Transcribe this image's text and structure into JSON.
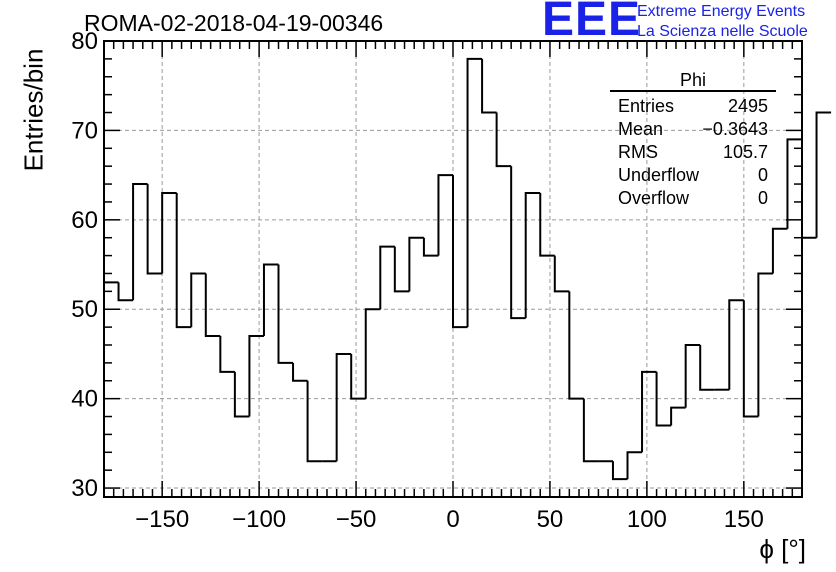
{
  "header": {
    "title": "ROMA-02-2018-04-19-00346",
    "logo_text": "EEE",
    "logo_line1": "Extreme Energy Events",
    "logo_line2": "La Scienza nelle Scuole"
  },
  "stats_box": {
    "title": "Phi",
    "rows": [
      {
        "label": "Entries",
        "value": "2495"
      },
      {
        "label": "Mean",
        "value": "−0.3643"
      },
      {
        "label": "RMS",
        "value": "105.7"
      },
      {
        "label": "Underflow",
        "value": "0"
      },
      {
        "label": "Overflow",
        "value": "0"
      }
    ]
  },
  "colors": {
    "logo": "#1a22e8",
    "line": "#000000",
    "grid": "#9a9a9a"
  },
  "chart_data": {
    "type": "histogram",
    "title": "ROMA-02-2018-04-19-00346",
    "xlabel": "ϕ [°]",
    "ylabel": "Entries/bin",
    "xlim": [
      -180,
      180
    ],
    "ylim": [
      29,
      80
    ],
    "grid": true,
    "bin_width": 7.5,
    "bin_edges_start": -180,
    "values": [
      53,
      51,
      64,
      54,
      63,
      48,
      54,
      47,
      43,
      38,
      47,
      55,
      44,
      42,
      33,
      33,
      45,
      40,
      50,
      57,
      52,
      58,
      56,
      65,
      48,
      78,
      72,
      66,
      49,
      63,
      56,
      52,
      40,
      33,
      33,
      31,
      34,
      43,
      37,
      39,
      46,
      41,
      41,
      51,
      38,
      54,
      59,
      69,
      58,
      72
    ],
    "x_ticks": [
      -150,
      -100,
      -50,
      0,
      50,
      100,
      150
    ],
    "x_tick_labels": [
      "−150",
      "−100",
      "−50",
      "0",
      "50",
      "100",
      "150"
    ],
    "y_ticks": [
      30,
      40,
      50,
      60,
      70,
      80
    ],
    "y_tick_labels": [
      "30",
      "40",
      "50",
      "60",
      "70",
      "80"
    ]
  }
}
